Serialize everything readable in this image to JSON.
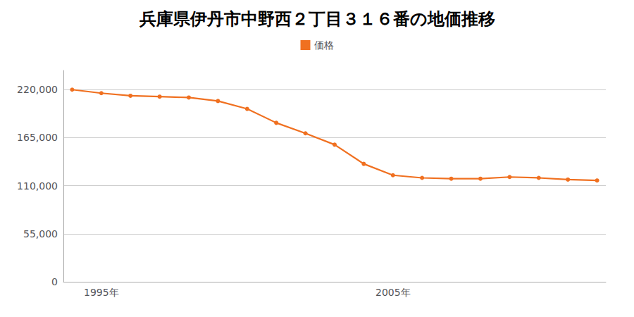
{
  "chart_data": {
    "type": "line",
    "title": "兵庫県伊丹市中野西２丁目３１６番の地価推移",
    "x": [
      1994,
      1995,
      1996,
      1997,
      1998,
      1999,
      2000,
      2001,
      2002,
      2003,
      2004,
      2005,
      2006,
      2007,
      2008,
      2009,
      2010,
      2011,
      2012
    ],
    "series": [
      {
        "name": "価格",
        "color": "#f07020",
        "marker": "circle",
        "values": [
          220000,
          216000,
          213000,
          212000,
          211000,
          207000,
          198000,
          182000,
          170000,
          157000,
          135000,
          122000,
          119000,
          118000,
          118000,
          120000,
          119000,
          117000,
          116000
        ]
      }
    ],
    "xlim": [
      1993.7,
      2012.3
    ],
    "xticks": [
      {
        "value": 1995,
        "label": "1995年"
      },
      {
        "value": 2005,
        "label": "2005年"
      }
    ],
    "ylim": [
      0,
      242000
    ],
    "yticks": [
      0,
      {
        "value": 55000,
        "label": "55,000"
      },
      {
        "value": 110000,
        "label": "110,000"
      },
      {
        "value": 165000,
        "label": "165,000"
      },
      {
        "value": 220000,
        "label": "220,000"
      }
    ],
    "grid": "y",
    "legend": "top"
  }
}
